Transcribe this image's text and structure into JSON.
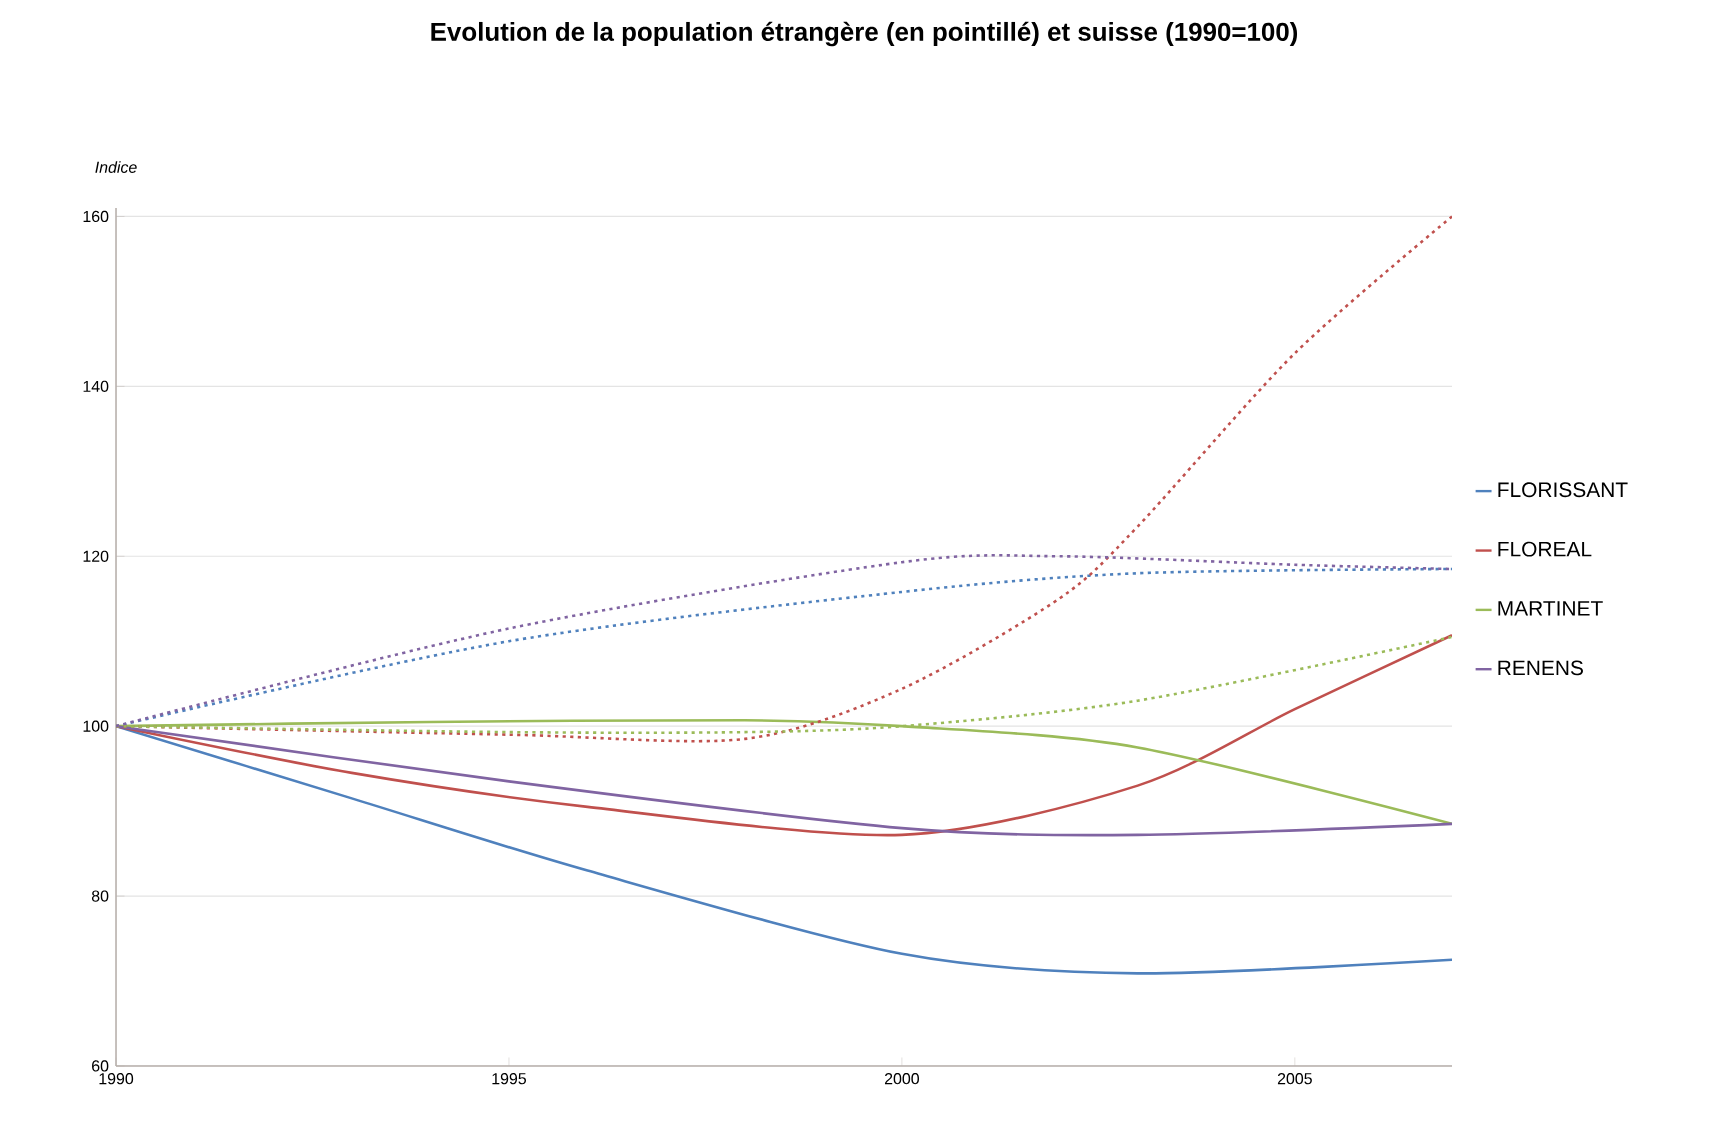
{
  "chart_data": {
    "type": "line",
    "title": "Evolution de la population étrangère (en pointillé) et suisse (1990=100)",
    "ylabel": "Indice",
    "xlim": [
      1990,
      2007
    ],
    "xticks": [
      1990,
      1995,
      2000,
      2005
    ],
    "ylim": [
      60,
      161
    ],
    "yticks": [
      60,
      80,
      100,
      120,
      140,
      160
    ],
    "grid": "y",
    "legend": "right",
    "marker": "none",
    "series": [
      {
        "name": "FLORISSANT",
        "color": "#4f81bd",
        "line_style": "solid",
        "x": [
          1990,
          1993,
          1996,
          2000,
          2003,
          2007
        ],
        "values": [
          100,
          91.5,
          83,
          73.2,
          70.9,
          72.5
        ]
      },
      {
        "name": "FLOREAL",
        "color": "#c0504d",
        "line_style": "solid",
        "x": [
          1990,
          1993,
          1996,
          2000,
          2003,
          2005,
          2007
        ],
        "values": [
          100,
          94.5,
          90.5,
          87.2,
          93,
          102,
          110.7
        ]
      },
      {
        "name": "MARTINET",
        "color": "#9bbb59",
        "line_style": "solid",
        "x": [
          1990,
          1994,
          1998,
          2000,
          2003,
          2007
        ],
        "values": [
          100,
          100.5,
          100.7,
          100,
          97.5,
          88.5
        ]
      },
      {
        "name": "RENENS",
        "color": "#8064a2",
        "line_style": "solid",
        "x": [
          1990,
          1995,
          2000,
          2003,
          2007
        ],
        "values": [
          100,
          93.5,
          88,
          87.2,
          88.5
        ]
      },
      {
        "color": "#4f81bd",
        "line_style": "dotted",
        "x": [
          1990,
          1995,
          2000,
          2003,
          2007
        ],
        "values": [
          100,
          110,
          115.8,
          118,
          118.5
        ]
      },
      {
        "color": "#c0504d",
        "line_style": "dotted",
        "x": [
          1990,
          1995,
          1998,
          2000,
          2002,
          2003,
          2005,
          2007
        ],
        "values": [
          100,
          99,
          98.5,
          104.4,
          115,
          123.5,
          143.9,
          160
        ]
      },
      {
        "color": "#9bbb59",
        "line_style": "dotted",
        "x": [
          1990,
          1995,
          1998,
          2000,
          2003,
          2007
        ],
        "values": [
          100,
          99.3,
          99.3,
          100,
          103,
          110.5
        ]
      },
      {
        "color": "#8064a2",
        "line_style": "dotted",
        "x": [
          1990,
          1995,
          2000,
          2002,
          2005,
          2007
        ],
        "values": [
          100,
          111.5,
          119.3,
          120,
          119,
          118.5
        ]
      }
    ]
  }
}
